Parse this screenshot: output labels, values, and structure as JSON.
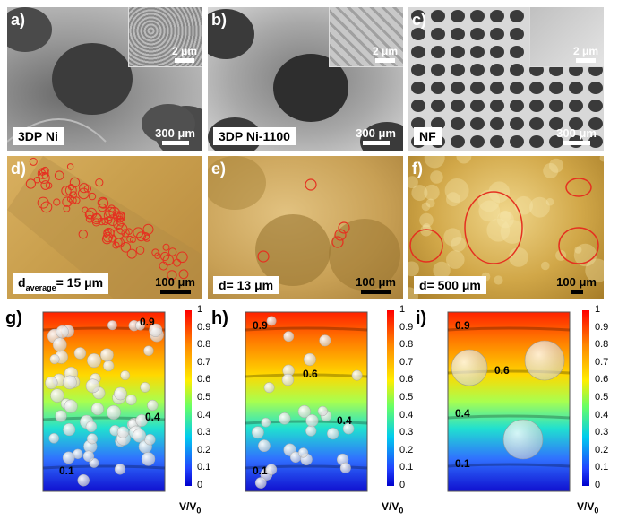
{
  "sem": [
    {
      "tag": "a)",
      "label": "3DP Ni",
      "scale": "300 μm",
      "inset_scale": "2 μm"
    },
    {
      "tag": "b)",
      "label": "3DP Ni-1100",
      "scale": "300 μm",
      "inset_scale": "2 μm"
    },
    {
      "tag": "c)",
      "label": "NF",
      "scale": "300 μm",
      "inset_scale": "2 μm"
    }
  ],
  "optical": [
    {
      "tag": "d)",
      "label_main": "d",
      "label_sub": "average",
      "label_rest": "= 15 μm",
      "scale": "100 μm"
    },
    {
      "tag": "e)",
      "label_main": "d= 13 μm",
      "scale": "100 μm"
    },
    {
      "tag": "f)",
      "label_main": "d= 500 μm",
      "scale": "100 μm"
    }
  ],
  "sims": [
    {
      "tag": "g)",
      "levels": [
        "0.9",
        "0.4",
        "0.1"
      ]
    },
    {
      "tag": "h)",
      "levels": [
        "0.9",
        "0.6",
        "0.4",
        "0.1"
      ]
    },
    {
      "tag": "i)",
      "levels": [
        "0.9",
        "0.6",
        "0.4",
        "0.1"
      ]
    }
  ],
  "colorbar": {
    "ticks": [
      "1",
      "0.9",
      "0.8",
      "0.7",
      "0.6",
      "0.5",
      "0.4",
      "0.3",
      "0.2",
      "0.1",
      "0"
    ],
    "label": "V/V",
    "label_sub": "0"
  },
  "colors": {
    "circle": "#e53020",
    "bubble": "#f2f2f2"
  }
}
